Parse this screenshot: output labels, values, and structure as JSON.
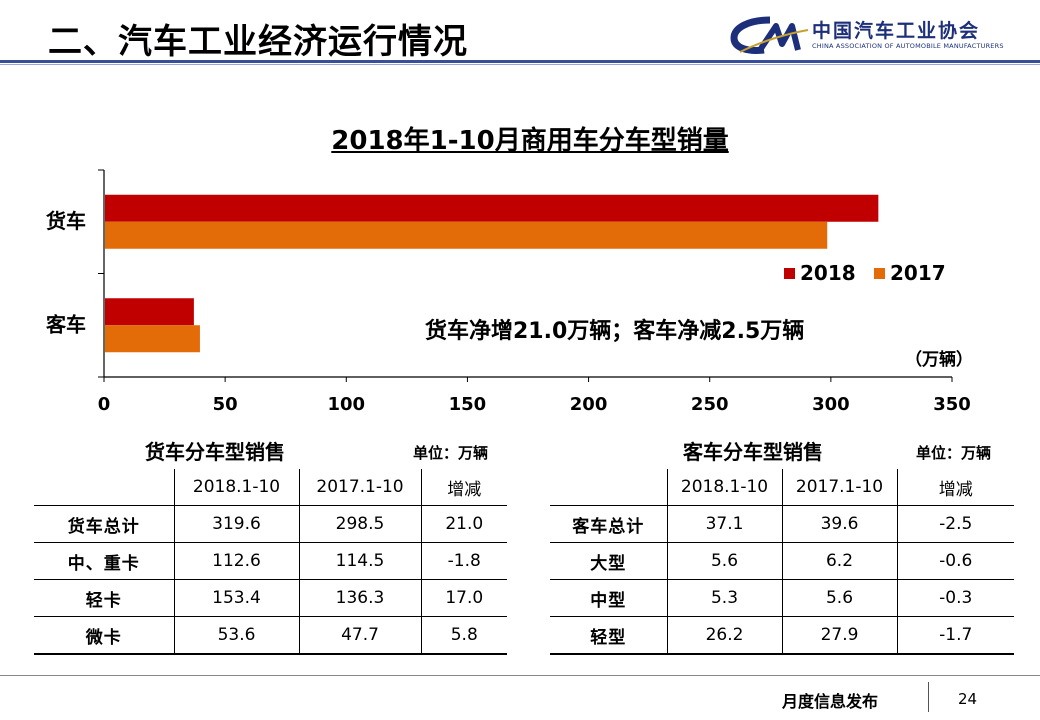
{
  "header": {
    "title": "二、汽车工业经济运行情况",
    "logo_cn": "中国汽车工业协会",
    "logo_en": "CHINA ASSOCIATION OF AUTOMOBILE MANUFACTURERS"
  },
  "colors": {
    "series_2018": "#c00000",
    "series_2017": "#e36c09",
    "accent": "#3a4f9a"
  },
  "chart_data": {
    "type": "bar",
    "orientation": "horizontal",
    "title": "2018年1-10月商用车分车型销量",
    "categories": [
      "货车",
      "客车"
    ],
    "series": [
      {
        "name": "2018",
        "values": [
          319.6,
          37.1
        ]
      },
      {
        "name": "2017",
        "values": [
          298.5,
          39.6
        ]
      }
    ],
    "x_ticks": [
      "0",
      "50",
      "100",
      "150",
      "200",
      "250",
      "300",
      "350"
    ],
    "xlim": [
      0,
      350
    ],
    "unit": "（万辆）",
    "annotation": "货车净增21.0万辆；客车净减2.5万辆",
    "legend": "right",
    "grid": false
  },
  "truck_table": {
    "title": "货车分车型销售",
    "unit": "单位：万辆",
    "headers": [
      "",
      "2018.1-10",
      "2017.1-10",
      "增减"
    ],
    "rows": [
      [
        "货车总计",
        "319.6",
        "298.5",
        "21.0"
      ],
      [
        "中、重卡",
        "112.6",
        "114.5",
        "-1.8"
      ],
      [
        "轻卡",
        "153.4",
        "136.3",
        "17.0"
      ],
      [
        "微卡",
        "53.6",
        "47.7",
        "5.8"
      ]
    ]
  },
  "bus_table": {
    "title": "客车分车型销售",
    "unit": "单位：万辆",
    "headers": [
      "",
      "2018.1-10",
      "2017.1-10",
      "增减"
    ],
    "rows": [
      [
        "客车总计",
        "37.1",
        "39.6",
        "-2.5"
      ],
      [
        "大型",
        "5.6",
        "6.2",
        "-0.6"
      ],
      [
        "中型",
        "5.3",
        "5.6",
        "-0.3"
      ],
      [
        "轻型",
        "26.2",
        "27.9",
        "-1.7"
      ]
    ]
  },
  "footer": {
    "label": "月度信息发布",
    "page": "24"
  }
}
